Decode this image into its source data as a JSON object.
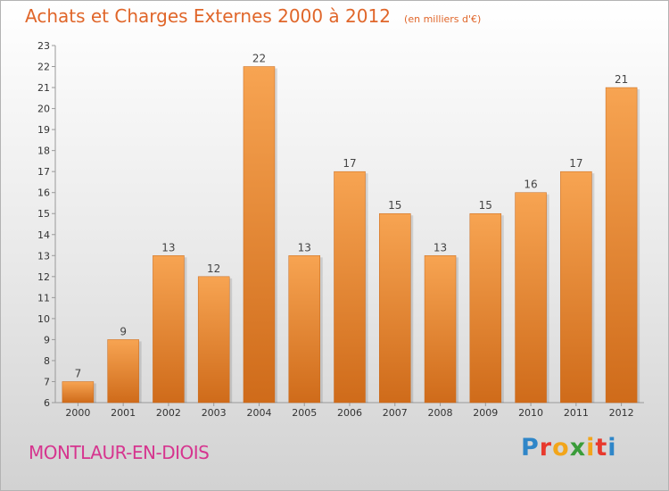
{
  "chart_data": {
    "type": "bar",
    "title": "Achats et Charges Externes 2000 à 2012",
    "subtitle": "(en milliers d'€)",
    "categories": [
      "2000",
      "2001",
      "2002",
      "2003",
      "2004",
      "2005",
      "2006",
      "2007",
      "2008",
      "2009",
      "2010",
      "2011",
      "2012"
    ],
    "values": [
      7,
      9,
      13,
      12,
      22,
      13,
      17,
      15,
      13,
      15,
      16,
      17,
      21
    ],
    "value_labels": [
      "7",
      "9",
      "13",
      "12",
      "22",
      "13",
      "17",
      "15",
      "13",
      "15",
      "16",
      "17",
      "21"
    ],
    "y_ticks": [
      "6",
      "7",
      "8",
      "9",
      "10",
      "11",
      "12",
      "13",
      "14",
      "15",
      "16",
      "17",
      "18",
      "19",
      "20",
      "21",
      "22",
      "23"
    ],
    "ylim": [
      6,
      23
    ],
    "grid": false,
    "colors": {
      "bar_top": "#f7a452",
      "bar_bottom": "#cf6b1a",
      "title": "#e0662a"
    }
  },
  "footer": {
    "town": "MONTLAUR-EN-DIOIS",
    "logo_letters": [
      {
        "char": "P",
        "color": "#2f86c8"
      },
      {
        "char": "r",
        "color": "#e8392d"
      },
      {
        "char": "o",
        "color": "#f2a51a"
      },
      {
        "char": "x",
        "color": "#3a9c3a"
      },
      {
        "char": "i",
        "color": "#f2a51a"
      },
      {
        "char": "t",
        "color": "#e8392d"
      },
      {
        "char": "i",
        "color": "#2f86c8"
      }
    ]
  }
}
